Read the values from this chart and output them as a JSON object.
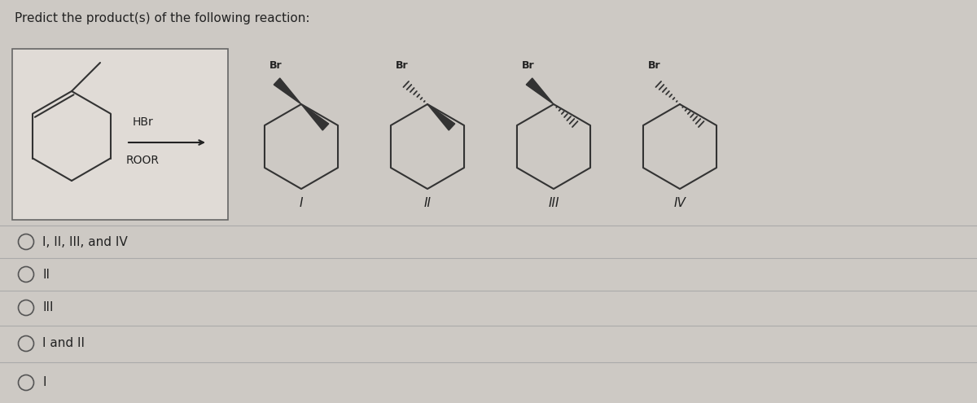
{
  "title": "Predict the product(s) of the following reaction:",
  "bg_color": "#cdc9c4",
  "panel_bg": "#e0dbd6",
  "answer_choices": [
    "I, II, III, and IV",
    "II",
    "III",
    "I and II",
    "I"
  ],
  "text_color": "#222222",
  "line_color": "#333333"
}
